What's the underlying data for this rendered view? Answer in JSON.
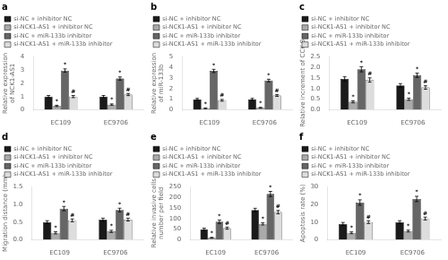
{
  "chart_data": [
    {
      "type": "bar",
      "title": "a",
      "ylabel": "Relative expression\nof NCK1-AS1",
      "categories": [
        "EC109",
        "EC9706"
      ],
      "series": [
        {
          "name": "si-NC + inhibitor NC",
          "color": "#1a1a1a",
          "values": [
            1.0,
            1.0
          ],
          "errors": [
            0.08,
            0.08
          ]
        },
        {
          "name": "si-NCK1-AS1 + inhibitor NC",
          "color": "#aaaaaa",
          "values": [
            0.3,
            0.4
          ],
          "errors": [
            0.05,
            0.05
          ],
          "annotations": [
            "*",
            "*"
          ]
        },
        {
          "name": "si-NC + miR-133b inhibitor",
          "color": "#666666",
          "values": [
            2.95,
            2.35
          ],
          "errors": [
            0.12,
            0.12
          ],
          "annotations": [
            "*",
            "*"
          ]
        },
        {
          "name": "si-NCK1-AS1 + miR-133b inhibitor",
          "color": "#dddddd",
          "values": [
            1.0,
            1.15
          ],
          "errors": [
            0.08,
            0.08
          ],
          "annotations": [
            "#",
            "#"
          ]
        }
      ],
      "ylim": [
        0,
        4
      ],
      "yticks": [
        0,
        1,
        2,
        3,
        4
      ],
      "grid": false,
      "legend": "upper left"
    },
    {
      "type": "bar",
      "title": "b",
      "ylabel": "Relative expression\nof miR-133b",
      "categories": [
        "EC109",
        "EC9706"
      ],
      "series": [
        {
          "name": "si-NC + inhibitor NC",
          "color": "#1a1a1a",
          "values": [
            1.0,
            1.0
          ],
          "errors": [
            0.08,
            0.08
          ]
        },
        {
          "name": "si-NCK1-AS1 + inhibitor NC",
          "color": "#aaaaaa",
          "values": [
            0.15,
            0.2
          ],
          "errors": [
            0.04,
            0.04
          ],
          "annotations": [
            "*",
            "*"
          ]
        },
        {
          "name": "si-NC + miR-133b inhibitor",
          "color": "#666666",
          "values": [
            3.65,
            2.75
          ],
          "errors": [
            0.15,
            0.12
          ],
          "annotations": [
            "*",
            "*"
          ]
        },
        {
          "name": "si-NCK1-AS1 + miR-133b inhibitor",
          "color": "#dddddd",
          "values": [
            0.9,
            1.35
          ],
          "errors": [
            0.08,
            0.08
          ],
          "annotations": [
            "#",
            "#"
          ]
        }
      ],
      "ylim": [
        0,
        5
      ],
      "yticks": [
        0,
        1,
        2,
        3,
        4,
        5
      ],
      "grid": false,
      "legend": "upper left"
    },
    {
      "type": "bar",
      "title": "c",
      "ylabel": "Relative increment of CCK-8",
      "categories": [
        "EC109",
        "EC9706"
      ],
      "series": [
        {
          "name": "si-NC + inhibitor NC",
          "color": "#1a1a1a",
          "values": [
            1.45,
            1.15
          ],
          "errors": [
            0.1,
            0.08
          ]
        },
        {
          "name": "si-NCK1-AS1 + inhibitor NC",
          "color": "#aaaaaa",
          "values": [
            0.38,
            0.5
          ],
          "errors": [
            0.05,
            0.05
          ],
          "annotations": [
            "*",
            "*"
          ]
        },
        {
          "name": "si-NC + miR-133b inhibitor",
          "color": "#666666",
          "values": [
            1.9,
            1.62
          ],
          "errors": [
            0.12,
            0.1
          ],
          "annotations": [
            "*",
            "*"
          ]
        },
        {
          "name": "si-NCK1-AS1 + miR-133b inhibitor",
          "color": "#dddddd",
          "values": [
            1.4,
            1.05
          ],
          "errors": [
            0.1,
            0.08
          ],
          "annotations": [
            "#",
            "#"
          ]
        }
      ],
      "ylim": [
        0,
        2.5
      ],
      "yticks": [
        {
          "value": 0,
          "label": "0.0"
        },
        0.5,
        {
          "value": 1,
          "label": "1.0"
        },
        1.5,
        {
          "value": 2,
          "label": "2.0"
        },
        2.5
      ],
      "grid": false,
      "legend": "upper left"
    },
    {
      "type": "bar",
      "title": "d",
      "ylabel": "Migration distance (mm)",
      "categories": [
        "EC109",
        "EC9706"
      ],
      "series": [
        {
          "name": "si-NC + inhibitor NC",
          "color": "#1a1a1a",
          "values": [
            0.5,
            0.57
          ],
          "errors": [
            0.04,
            0.04
          ]
        },
        {
          "name": "si-NCK1-AS1 + inhibitor NC",
          "color": "#aaaaaa",
          "values": [
            0.2,
            0.24
          ],
          "errors": [
            0.03,
            0.03
          ],
          "annotations": [
            "*",
            "*"
          ]
        },
        {
          "name": "si-NC + miR-133b inhibitor",
          "color": "#666666",
          "values": [
            0.88,
            0.84
          ],
          "errors": [
            0.06,
            0.05
          ],
          "annotations": [
            "*",
            "*"
          ]
        },
        {
          "name": "si-NCK1-AS1 + miR-133b inhibitor",
          "color": "#dddddd",
          "values": [
            0.55,
            0.57
          ],
          "errors": [
            0.04,
            0.04
          ],
          "annotations": [
            "#",
            "#"
          ]
        }
      ],
      "ylim": [
        0,
        1.5
      ],
      "yticks": [
        {
          "value": 0,
          "label": "0.0"
        },
        0.5,
        {
          "value": 1,
          "label": "1.0"
        },
        1.5
      ],
      "grid": false,
      "legend": "upper left"
    },
    {
      "type": "bar",
      "title": "e",
      "ylabel": "Relative invasive cells\nnumber per field",
      "categories": [
        "EC109",
        "EC9706"
      ],
      "series": [
        {
          "name": "si-NC + inhibitor NC",
          "color": "#1a1a1a",
          "values": [
            50,
            140
          ],
          "errors": [
            5,
            8
          ]
        },
        {
          "name": "si-NCK1-AS1 + inhibitor NC",
          "color": "#aaaaaa",
          "values": [
            10,
            75
          ],
          "errors": [
            2,
            5
          ],
          "annotations": [
            "*",
            "*"
          ]
        },
        {
          "name": "si-NC + miR-133b inhibitor",
          "color": "#666666",
          "values": [
            85,
            215
          ],
          "errors": [
            8,
            12
          ],
          "annotations": [
            "*",
            "*"
          ]
        },
        {
          "name": "si-NCK1-AS1 + miR-133b inhibitor",
          "color": "#dddddd",
          "values": [
            55,
            130
          ],
          "errors": [
            5,
            8
          ],
          "annotations": [
            "#",
            "#"
          ]
        }
      ],
      "ylim": [
        0,
        250
      ],
      "yticks": [
        0,
        50,
        100,
        150,
        200,
        250
      ],
      "grid": false,
      "legend": "upper left"
    },
    {
      "type": "bar",
      "title": "f",
      "ylabel": "Apoptosis rate (%)",
      "categories": [
        "EC109",
        "EC9706"
      ],
      "series": [
        {
          "name": "si-NC + inhibitor NC",
          "color": "#1a1a1a",
          "values": [
            9,
            10
          ],
          "errors": [
            0.8,
            0.8
          ]
        },
        {
          "name": "si-NCK1-AS1 + inhibitor NC",
          "color": "#aaaaaa",
          "values": [
            4,
            5
          ],
          "errors": [
            0.5,
            0.5
          ],
          "annotations": [
            "*",
            "*"
          ]
        },
        {
          "name": "si-NC + miR-133b inhibitor",
          "color": "#666666",
          "values": [
            21,
            23
          ],
          "errors": [
            1.5,
            1.5
          ],
          "annotations": [
            "*",
            "*"
          ]
        },
        {
          "name": "si-NCK1-AS1 + miR-133b inhibitor",
          "color": "#dddddd",
          "values": [
            10,
            12
          ],
          "errors": [
            0.8,
            0.8
          ],
          "annotations": [
            "#",
            "#"
          ]
        }
      ],
      "ylim": [
        0,
        30
      ],
      "yticks": [
        0,
        10,
        20,
        30
      ],
      "grid": false,
      "legend": "upper left"
    }
  ]
}
